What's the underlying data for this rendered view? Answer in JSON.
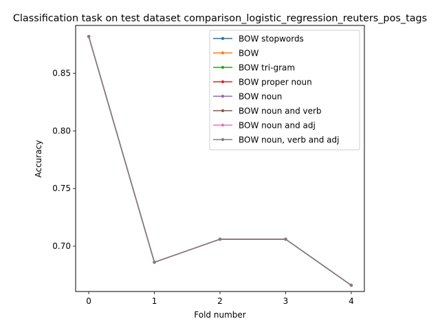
{
  "chart_data": {
    "type": "line",
    "title": "Classification task on test dataset comparison_logistic_regression_reuters_pos_tags",
    "xlabel": "Fold number",
    "ylabel": "Accuracy",
    "x": [
      0,
      1,
      2,
      3,
      4
    ],
    "xticks": [
      "0",
      "1",
      "2",
      "3",
      "4"
    ],
    "yticks": [
      "0.70",
      "0.75",
      "0.80",
      "0.85"
    ],
    "xlim": [
      -0.2,
      4.2
    ],
    "ylim": [
      0.6606,
      0.8916
    ],
    "grid": false,
    "legend_position": "upper-right",
    "series": [
      {
        "name": "BOW stopwords",
        "color": "#1f77b4",
        "values": [
          0.882,
          0.686,
          0.706,
          0.706,
          0.666
        ]
      },
      {
        "name": "BOW",
        "color": "#ff7f0e",
        "values": [
          0.882,
          0.686,
          0.706,
          0.706,
          0.666
        ]
      },
      {
        "name": "BOW tri-gram",
        "color": "#2ca02c",
        "values": [
          0.882,
          0.686,
          0.706,
          0.706,
          0.666
        ]
      },
      {
        "name": "BOW proper noun",
        "color": "#d62728",
        "values": [
          0.882,
          0.686,
          0.706,
          0.706,
          0.666
        ]
      },
      {
        "name": "BOW noun",
        "color": "#9467bd",
        "values": [
          0.882,
          0.686,
          0.706,
          0.706,
          0.666
        ]
      },
      {
        "name": "BOW noun and verb",
        "color": "#8c564b",
        "values": [
          0.882,
          0.686,
          0.706,
          0.706,
          0.666
        ]
      },
      {
        "name": "BOW noun and adj",
        "color": "#e377c2",
        "values": [
          0.882,
          0.686,
          0.706,
          0.706,
          0.666
        ]
      },
      {
        "name": "BOW noun, verb and adj",
        "color": "#7f7f7f",
        "values": [
          0.882,
          0.686,
          0.706,
          0.706,
          0.666
        ]
      }
    ]
  }
}
